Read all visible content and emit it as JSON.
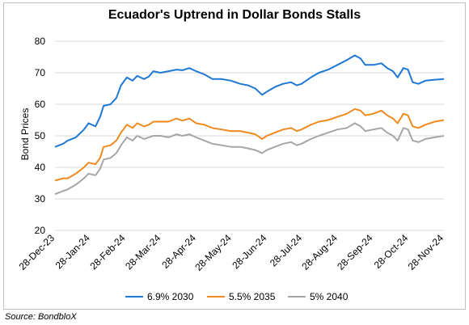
{
  "chart_data": {
    "type": "line",
    "title": "Ecuador's Uptrend in Dollar Bonds Stalls",
    "xlabel": "",
    "ylabel": "Bond Prices",
    "ylim": [
      20,
      80
    ],
    "yticks": [
      20,
      30,
      40,
      50,
      60,
      70,
      80
    ],
    "x_tick_labels": [
      "28-Dec-23",
      "28-Jan-24",
      "28-Feb-24",
      "28-Mar-24",
      "28-Apr-24",
      "28-May-24",
      "28-Jun-24",
      "28-Jul-24",
      "28-Aug-24",
      "28-Sep-24",
      "28-Oct-24",
      "28-Nov-24"
    ],
    "grid": true,
    "legend": "bottom",
    "series": [
      {
        "name": "6.9% 2030",
        "color": "#1f77d4",
        "points": [
          [
            "2023-12-28",
            46.5
          ],
          [
            "2024-01-04",
            47.5
          ],
          [
            "2024-01-08",
            48.5
          ],
          [
            "2024-01-15",
            49.5
          ],
          [
            "2024-01-22",
            52.0
          ],
          [
            "2024-01-26",
            54.0
          ],
          [
            "2024-02-01",
            53.0
          ],
          [
            "2024-02-05",
            56.0
          ],
          [
            "2024-02-08",
            59.5
          ],
          [
            "2024-02-14",
            60.0
          ],
          [
            "2024-02-19",
            62.0
          ],
          [
            "2024-02-23",
            66.0
          ],
          [
            "2024-02-28",
            68.5
          ],
          [
            "2024-03-04",
            67.5
          ],
          [
            "2024-03-08",
            69.0
          ],
          [
            "2024-03-14",
            68.0
          ],
          [
            "2024-03-18",
            68.8
          ],
          [
            "2024-03-22",
            70.5
          ],
          [
            "2024-03-28",
            70.0
          ],
          [
            "2024-04-04",
            70.5
          ],
          [
            "2024-04-11",
            71.0
          ],
          [
            "2024-04-16",
            70.8
          ],
          [
            "2024-04-22",
            71.5
          ],
          [
            "2024-04-28",
            70.5
          ],
          [
            "2024-05-05",
            69.5
          ],
          [
            "2024-05-12",
            68.0
          ],
          [
            "2024-05-20",
            68.0
          ],
          [
            "2024-05-28",
            67.5
          ],
          [
            "2024-06-05",
            66.5
          ],
          [
            "2024-06-12",
            66.0
          ],
          [
            "2024-06-18",
            65.0
          ],
          [
            "2024-06-24",
            63.0
          ],
          [
            "2024-06-28",
            64.0
          ],
          [
            "2024-07-05",
            65.5
          ],
          [
            "2024-07-12",
            66.5
          ],
          [
            "2024-07-19",
            67.0
          ],
          [
            "2024-07-24",
            66.0
          ],
          [
            "2024-07-28",
            66.5
          ],
          [
            "2024-08-05",
            68.5
          ],
          [
            "2024-08-12",
            70.0
          ],
          [
            "2024-08-20",
            71.0
          ],
          [
            "2024-08-28",
            72.5
          ],
          [
            "2024-09-05",
            74.0
          ],
          [
            "2024-09-12",
            75.5
          ],
          [
            "2024-09-17",
            74.5
          ],
          [
            "2024-09-21",
            72.5
          ],
          [
            "2024-09-28",
            72.5
          ],
          [
            "2024-10-05",
            73.0
          ],
          [
            "2024-10-10",
            71.5
          ],
          [
            "2024-10-15",
            70.5
          ],
          [
            "2024-10-19",
            68.5
          ],
          [
            "2024-10-24",
            71.5
          ],
          [
            "2024-10-28",
            71.0
          ],
          [
            "2024-11-01",
            67.0
          ],
          [
            "2024-11-06",
            66.5
          ],
          [
            "2024-11-12",
            67.5
          ],
          [
            "2024-11-20",
            67.8
          ],
          [
            "2024-11-28",
            68.0
          ]
        ]
      },
      {
        "name": "5.5% 2035",
        "color": "#f08a1e",
        "points": [
          [
            "2023-12-28",
            35.8
          ],
          [
            "2024-01-04",
            36.5
          ],
          [
            "2024-01-08",
            36.5
          ],
          [
            "2024-01-15",
            38.0
          ],
          [
            "2024-01-22",
            40.0
          ],
          [
            "2024-01-26",
            41.5
          ],
          [
            "2024-02-01",
            41.0
          ],
          [
            "2024-02-05",
            43.0
          ],
          [
            "2024-02-08",
            46.5
          ],
          [
            "2024-02-14",
            47.0
          ],
          [
            "2024-02-19",
            48.5
          ],
          [
            "2024-02-23",
            51.0
          ],
          [
            "2024-02-28",
            53.5
          ],
          [
            "2024-03-04",
            52.5
          ],
          [
            "2024-03-08",
            54.0
          ],
          [
            "2024-03-14",
            53.0
          ],
          [
            "2024-03-18",
            53.5
          ],
          [
            "2024-03-22",
            54.5
          ],
          [
            "2024-03-28",
            54.5
          ],
          [
            "2024-04-04",
            54.5
          ],
          [
            "2024-04-11",
            55.5
          ],
          [
            "2024-04-16",
            54.8
          ],
          [
            "2024-04-22",
            55.5
          ],
          [
            "2024-04-28",
            54.0
          ],
          [
            "2024-05-05",
            53.5
          ],
          [
            "2024-05-12",
            52.5
          ],
          [
            "2024-05-20",
            52.0
          ],
          [
            "2024-05-28",
            51.5
          ],
          [
            "2024-06-05",
            51.5
          ],
          [
            "2024-06-12",
            51.0
          ],
          [
            "2024-06-18",
            50.5
          ],
          [
            "2024-06-24",
            49.0
          ],
          [
            "2024-06-28",
            50.0
          ],
          [
            "2024-07-05",
            51.0
          ],
          [
            "2024-07-12",
            52.0
          ],
          [
            "2024-07-19",
            52.5
          ],
          [
            "2024-07-24",
            51.5
          ],
          [
            "2024-07-28",
            52.0
          ],
          [
            "2024-08-05",
            53.5
          ],
          [
            "2024-08-12",
            54.5
          ],
          [
            "2024-08-20",
            55.0
          ],
          [
            "2024-08-28",
            56.0
          ],
          [
            "2024-09-05",
            57.0
          ],
          [
            "2024-09-12",
            58.5
          ],
          [
            "2024-09-17",
            58.0
          ],
          [
            "2024-09-21",
            56.5
          ],
          [
            "2024-09-28",
            57.0
          ],
          [
            "2024-10-05",
            58.0
          ],
          [
            "2024-10-10",
            56.5
          ],
          [
            "2024-10-15",
            55.5
          ],
          [
            "2024-10-19",
            54.0
          ],
          [
            "2024-10-24",
            57.0
          ],
          [
            "2024-10-28",
            56.5
          ],
          [
            "2024-11-01",
            53.0
          ],
          [
            "2024-11-06",
            52.5
          ],
          [
            "2024-11-12",
            53.5
          ],
          [
            "2024-11-20",
            54.5
          ],
          [
            "2024-11-28",
            55.0
          ]
        ]
      },
      {
        "name": "5% 2040",
        "color": "#a6a6a6",
        "points": [
          [
            "2023-12-28",
            31.5
          ],
          [
            "2024-01-04",
            32.5
          ],
          [
            "2024-01-08",
            33.0
          ],
          [
            "2024-01-15",
            34.5
          ],
          [
            "2024-01-22",
            36.5
          ],
          [
            "2024-01-26",
            38.0
          ],
          [
            "2024-02-01",
            37.5
          ],
          [
            "2024-02-05",
            39.5
          ],
          [
            "2024-02-08",
            42.5
          ],
          [
            "2024-02-14",
            43.0
          ],
          [
            "2024-02-19",
            44.5
          ],
          [
            "2024-02-23",
            47.0
          ],
          [
            "2024-02-28",
            49.5
          ],
          [
            "2024-03-04",
            48.5
          ],
          [
            "2024-03-08",
            50.0
          ],
          [
            "2024-03-14",
            49.0
          ],
          [
            "2024-03-18",
            49.5
          ],
          [
            "2024-03-22",
            50.0
          ],
          [
            "2024-03-28",
            50.0
          ],
          [
            "2024-04-04",
            49.5
          ],
          [
            "2024-04-11",
            50.5
          ],
          [
            "2024-04-16",
            50.0
          ],
          [
            "2024-04-22",
            50.5
          ],
          [
            "2024-04-28",
            49.5
          ],
          [
            "2024-05-05",
            48.5
          ],
          [
            "2024-05-12",
            47.5
          ],
          [
            "2024-05-20",
            47.0
          ],
          [
            "2024-05-28",
            46.5
          ],
          [
            "2024-06-05",
            46.5
          ],
          [
            "2024-06-12",
            46.0
          ],
          [
            "2024-06-18",
            45.5
          ],
          [
            "2024-06-24",
            44.5
          ],
          [
            "2024-06-28",
            45.5
          ],
          [
            "2024-07-05",
            46.5
          ],
          [
            "2024-07-12",
            47.5
          ],
          [
            "2024-07-19",
            48.0
          ],
          [
            "2024-07-24",
            47.0
          ],
          [
            "2024-07-28",
            47.5
          ],
          [
            "2024-08-05",
            49.0
          ],
          [
            "2024-08-12",
            50.0
          ],
          [
            "2024-08-20",
            51.0
          ],
          [
            "2024-08-28",
            52.0
          ],
          [
            "2024-09-05",
            52.5
          ],
          [
            "2024-09-12",
            54.0
          ],
          [
            "2024-09-17",
            53.0
          ],
          [
            "2024-09-21",
            51.5
          ],
          [
            "2024-09-28",
            52.0
          ],
          [
            "2024-10-05",
            52.5
          ],
          [
            "2024-10-10",
            51.0
          ],
          [
            "2024-10-15",
            50.0
          ],
          [
            "2024-10-19",
            48.5
          ],
          [
            "2024-10-24",
            52.5
          ],
          [
            "2024-10-28",
            52.0
          ],
          [
            "2024-11-01",
            48.5
          ],
          [
            "2024-11-06",
            48.0
          ],
          [
            "2024-11-12",
            49.0
          ],
          [
            "2024-11-20",
            49.5
          ],
          [
            "2024-11-28",
            50.0
          ]
        ]
      }
    ]
  },
  "source_label": "Source: BondbloX"
}
